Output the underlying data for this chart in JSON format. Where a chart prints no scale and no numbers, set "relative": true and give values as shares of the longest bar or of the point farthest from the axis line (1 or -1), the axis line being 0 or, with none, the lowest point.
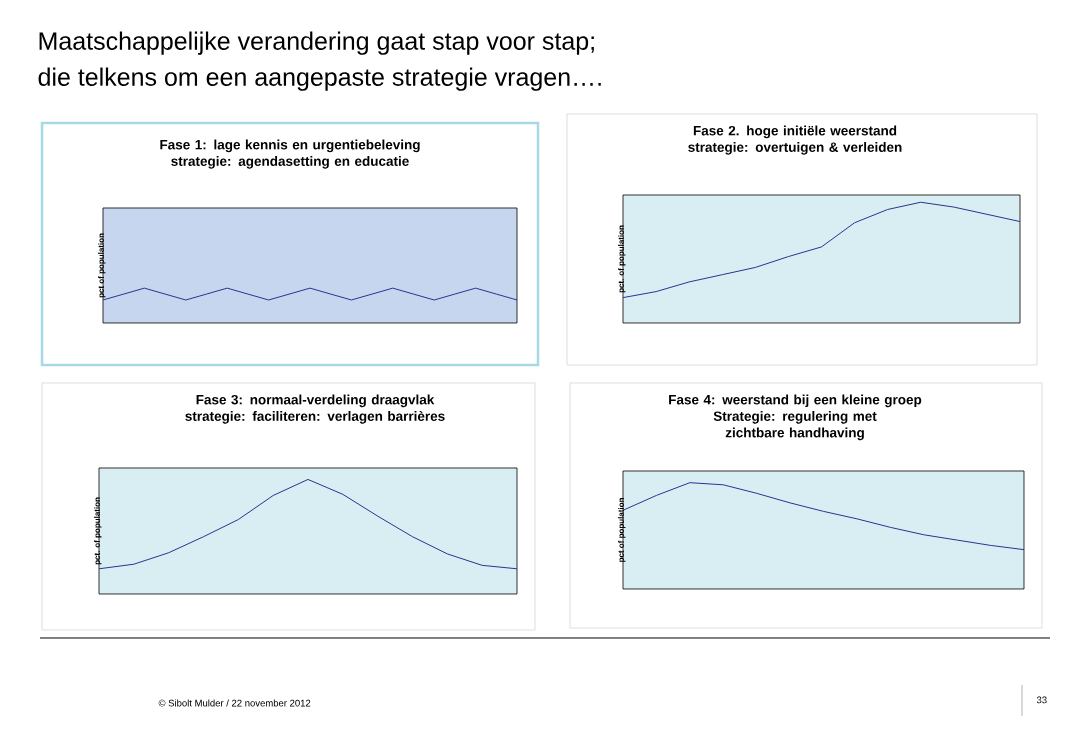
{
  "chart_data": [
    {
      "type": "line",
      "title": "Fase 1: lage kennis en urgentiebeleving",
      "subtitle": "strategie: agendasetting en educatie",
      "ylabel": "pct of population",
      "relative": true,
      "categories": [
        null,
        null,
        null,
        null,
        null,
        null,
        null,
        null,
        null,
        null,
        null,
        null,
        null,
        null,
        null,
        null,
        null,
        null,
        null,
        null,
        null
      ],
      "series": [
        {
          "color": "#2b3390",
          "values": [
            0.66,
            0.83,
            1,
            0.83,
            0.66,
            0.83,
            1,
            0.83,
            0.66,
            0.83,
            1,
            0.83,
            0.66,
            0.83,
            1,
            0.83,
            0.66,
            0.83,
            1,
            0.83,
            0.66
          ]
        }
      ]
    },
    {
      "type": "line",
      "title": "Fase 2. hoge initiële weerstand",
      "subtitle": "strategie: overtuigen & verleiden",
      "ylabel": "pct. of population",
      "relative": true,
      "categories": [
        null,
        null,
        null,
        null,
        null,
        null,
        null,
        null,
        null,
        null,
        null,
        null,
        null
      ],
      "series": [
        {
          "color": "#2b3390",
          "values": [
            0.21,
            0.26,
            0.34,
            0.4,
            0.46,
            0.55,
            0.63,
            0.83,
            0.94,
            1,
            0.96,
            0.9,
            0.84
          ]
        }
      ]
    },
    {
      "type": "line",
      "title": "Fase 3: normaal-verdeling draagvlak",
      "subtitle": "strategie: faciliteren: verlagen barrières",
      "ylabel": "pct. of population",
      "relative": true,
      "categories": [
        null,
        null,
        null,
        null,
        null,
        null,
        null,
        null,
        null,
        null,
        null,
        null,
        null
      ],
      "series": [
        {
          "color": "#2b3390",
          "values": [
            0.22,
            0.26,
            0.36,
            0.5,
            0.65,
            0.86,
            1,
            0.87,
            0.68,
            0.5,
            0.35,
            0.25,
            0.22
          ]
        }
      ]
    },
    {
      "type": "line",
      "title": "Fase 4: weerstand bij een kleine groep",
      "subtitle": "Strategie: regulering met zichtbare handhaving",
      "ylabel": "pct of population",
      "relative": true,
      "categories": [
        null,
        null,
        null,
        null,
        null,
        null,
        null,
        null,
        null,
        null,
        null,
        null,
        null
      ],
      "series": [
        {
          "color": "#2b3390",
          "values": [
            0.74,
            0.88,
            1,
            0.98,
            0.9,
            0.81,
            0.73,
            0.66,
            0.58,
            0.51,
            0.46,
            0.41,
            0.37
          ]
        }
      ]
    },
    {
      "type": "other",
      "title": "Maatschappelijke verandering gaat stap voor stap;",
      "subtitle": "die telkens om een aangepaste strategie vragen….",
      "annotations": [
        "© Sibolt Mulder /  22 november 2012",
        "33"
      ]
    }
  ]
}
